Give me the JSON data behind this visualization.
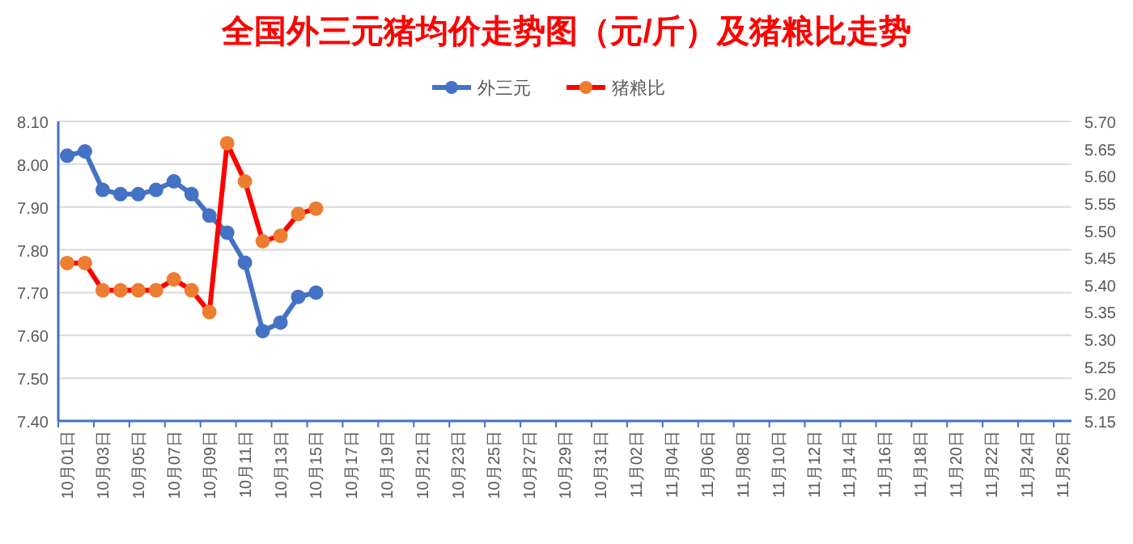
{
  "chart_data": {
    "type": "line",
    "title": "全国外三元猪均价走势图（元/斤）及猪粮比走势",
    "categories": [
      "10月01日",
      null,
      "10月03日",
      null,
      "10月05日",
      null,
      "10月07日",
      null,
      "10月09日",
      null,
      "10月11日",
      null,
      "10月13日",
      null,
      "10月15日",
      null,
      "10月17日",
      null,
      "10月19日",
      null,
      "10月21日",
      null,
      "10月23日",
      null,
      "10月25日",
      null,
      "10月27日",
      null,
      "10月29日",
      null,
      "10月31日",
      null,
      "11月02日",
      null,
      "11月04日",
      null,
      "11月06日",
      null,
      "11月08日",
      null,
      "11月10日",
      null,
      "11月12日",
      null,
      "11月14日",
      null,
      "11月16日",
      null,
      "11月18日",
      null,
      "11月20日",
      null,
      "11月22日",
      null,
      "11月24日",
      null,
      "11月26日"
    ],
    "series": [
      {
        "name": "外三元",
        "color": "#4472c4",
        "values": [
          8.02,
          8.03,
          7.94,
          7.93,
          7.93,
          7.94,
          7.96,
          7.93,
          7.88,
          7.84,
          7.77,
          7.61,
          7.63,
          7.69,
          7.7,
          null,
          null,
          null,
          null,
          null,
          null,
          null,
          null,
          null,
          null,
          null,
          null,
          null,
          null,
          null,
          null,
          null,
          null,
          null,
          null,
          null,
          null,
          null,
          null,
          null,
          null,
          null,
          null,
          null,
          null,
          null,
          null,
          null,
          null,
          null,
          null,
          null,
          null,
          null,
          null,
          null,
          null
        ]
      },
      {
        "name": "猪粮比",
        "color": "#ff0000",
        "axis": "y2",
        "colors": [
          "#ed7d31",
          "#ed7d31",
          "#ed7d31",
          "#ed7d31",
          "#ed7d31",
          "#ed7d31",
          "#ed7d31",
          "#ed7d31",
          "#ed7d31",
          "#ed7d31",
          "#ed7d31",
          "#ed7d31",
          "#ed7d31",
          "#ed7d31",
          "#ed7d31",
          null,
          null,
          null,
          null,
          null,
          null,
          null,
          null,
          null,
          null,
          null,
          null,
          null,
          null,
          null,
          null,
          null,
          null,
          null,
          null,
          null,
          null,
          null,
          null,
          null,
          null,
          null,
          null,
          null,
          null,
          null,
          null,
          null,
          null,
          null,
          null,
          null,
          null,
          null,
          null,
          null,
          null
        ],
        "values": [
          5.44,
          5.44,
          5.39,
          5.39,
          5.39,
          5.39,
          5.41,
          5.39,
          5.35,
          5.66,
          5.59,
          5.48,
          5.49,
          5.53,
          5.54,
          null,
          null,
          null,
          null,
          null,
          null,
          null,
          null,
          null,
          null,
          null,
          null,
          null,
          null,
          null,
          null,
          null,
          null,
          null,
          null,
          null,
          null,
          null,
          null,
          null,
          null,
          null,
          null,
          null,
          null,
          null,
          null,
          null,
          null,
          null,
          null,
          null,
          null,
          null,
          null,
          null,
          null
        ]
      }
    ],
    "ylim": [
      7.4,
      8.1
    ],
    "yticks": [
      {
        "value": 7.4,
        "label": "7.40"
      },
      {
        "value": 7.5,
        "label": "7.50"
      },
      {
        "value": 7.6,
        "label": "7.60"
      },
      {
        "value": 7.7,
        "label": "7.70"
      },
      {
        "value": 7.8,
        "label": "7.80"
      },
      {
        "value": 7.9,
        "label": "7.90"
      },
      {
        "value": 8.0,
        "label": "8.00"
      },
      {
        "value": 8.1,
        "label": "8.10"
      }
    ],
    "y2lim": [
      5.15,
      5.7
    ],
    "y2ticks": [
      5.15,
      {
        "value": 5.2,
        "label": "5.20"
      },
      5.25,
      {
        "value": 5.3,
        "label": "5.30"
      },
      5.35,
      {
        "value": 5.4,
        "label": "5.40"
      },
      5.45,
      {
        "value": 5.5,
        "label": "5.50"
      },
      5.55,
      {
        "value": 5.6,
        "label": "5.60"
      },
      5.65,
      {
        "value": 5.7,
        "label": "5.70"
      }
    ],
    "grid": "y",
    "legend": "top",
    "marker": "circle",
    "line_style": "solid"
  }
}
